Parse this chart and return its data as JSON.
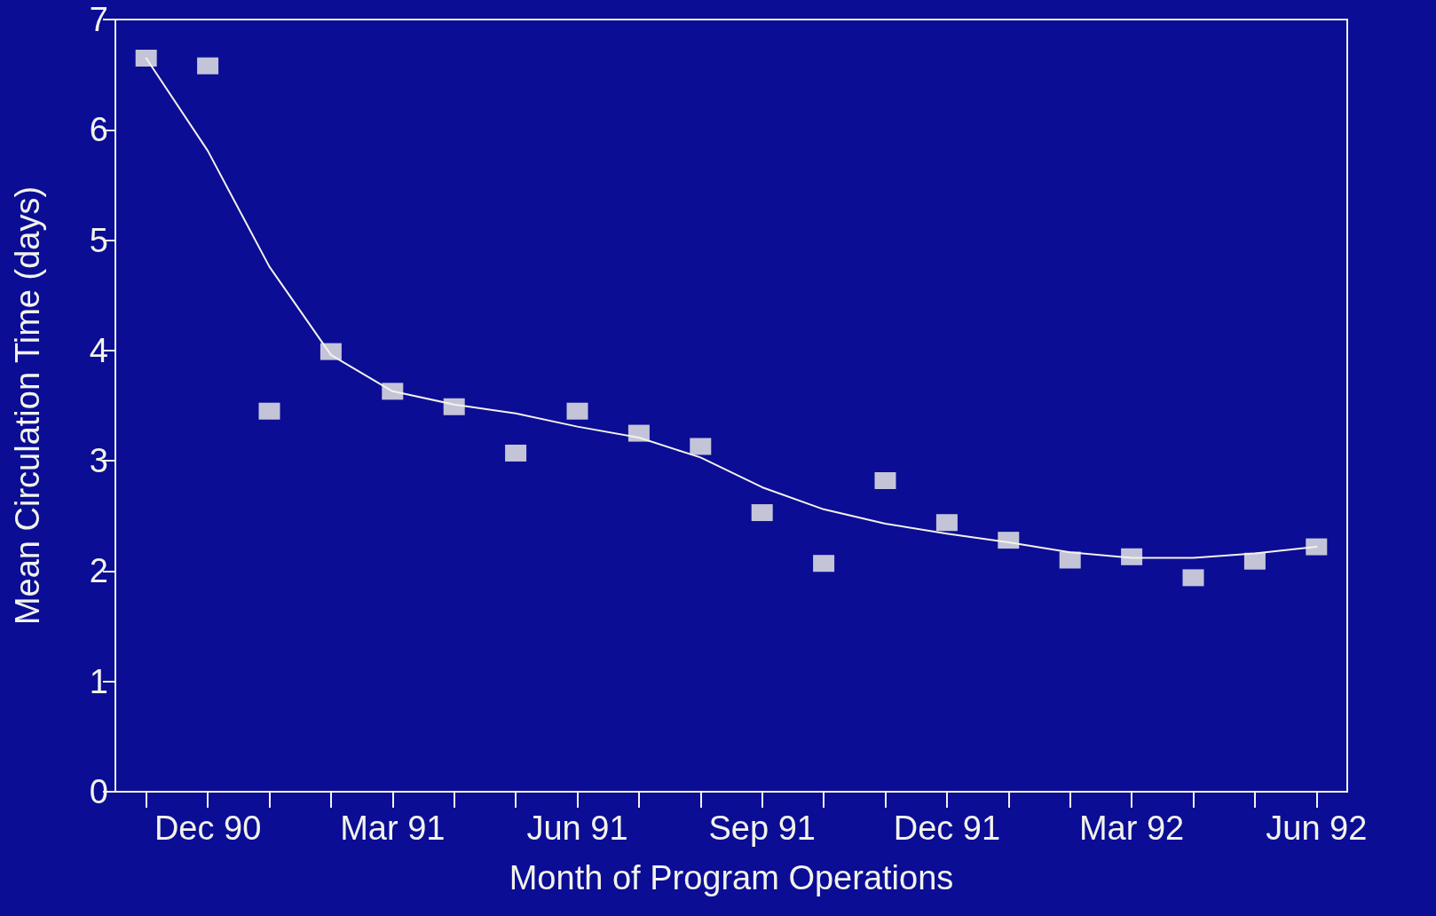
{
  "chart_data": {
    "type": "scatter",
    "xlabel": "Month of Program Operations",
    "ylabel": "Mean Circulation Time (days)",
    "categories": [
      null,
      "Dec 90",
      null,
      null,
      "Mar 91",
      null,
      null,
      "Jun 91",
      null,
      null,
      "Sep 91",
      null,
      null,
      "Dec 91",
      null,
      null,
      "Mar 92",
      null,
      null,
      "Jun 92"
    ],
    "series": [
      {
        "marker": "square",
        "color": "#f2f2ea",
        "values": [
          6.65,
          6.58,
          3.45,
          3.99,
          3.63,
          3.49,
          3.07,
          3.45,
          3.25,
          3.13,
          2.53,
          2.07,
          2.82,
          2.44,
          2.28,
          2.1,
          2.13,
          1.94,
          2.09,
          2.22
        ]
      },
      {
        "type": "line",
        "marker": "none",
        "line_style": "solid",
        "color": "#f2f2ea",
        "values": [
          6.65,
          5.81,
          4.76,
          3.96,
          3.63,
          3.51,
          3.43,
          3.31,
          3.21,
          3.03,
          2.76,
          2.56,
          2.43,
          2.34,
          2.26,
          2.17,
          2.12,
          2.12,
          2.16,
          2.22
        ]
      }
    ],
    "ylim": [
      0,
      7
    ],
    "yticks": [
      0,
      1,
      2,
      3,
      4,
      5,
      6,
      7
    ],
    "grid": false
  }
}
